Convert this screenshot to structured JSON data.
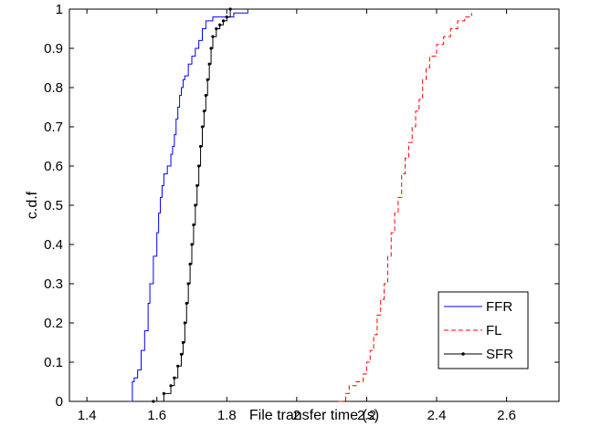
{
  "chart_data": {
    "type": "line",
    "title": "",
    "xlabel": "File transfer time (s)",
    "ylabel": "c.d.f",
    "xlim": [
      1.35,
      2.75
    ],
    "ylim": [
      0,
      1
    ],
    "xticks": [
      "1.4",
      "1.6",
      "1.8",
      "2",
      "2.2",
      "2.4",
      "2.6"
    ],
    "xtick_values": [
      1.4,
      1.6,
      1.8,
      2.0,
      2.2,
      2.4,
      2.6
    ],
    "yticks": [
      "0",
      "0.1",
      "0.2",
      "0.3",
      "0.4",
      "0.5",
      "0.6",
      "0.7",
      "0.8",
      "0.9",
      "1"
    ],
    "ytick_values": [
      0,
      0.1,
      0.2,
      0.3,
      0.4,
      0.5,
      0.6,
      0.7,
      0.8,
      0.9,
      1.0
    ],
    "grid": false,
    "legend_position": "bottom-right",
    "series": [
      {
        "name": "FFR",
        "color": "#0000ff",
        "style": "solid",
        "marker": "none",
        "x": [
          1.52,
          1.53,
          1.535,
          1.545,
          1.555,
          1.565,
          1.575,
          1.58,
          1.59,
          1.6,
          1.605,
          1.61,
          1.615,
          1.62,
          1.63,
          1.64,
          1.645,
          1.65,
          1.655,
          1.66,
          1.665,
          1.67,
          1.675,
          1.68,
          1.69,
          1.7,
          1.71,
          1.72,
          1.73,
          1.74,
          1.76,
          1.78,
          1.82,
          1.86
        ],
        "y": [
          0.0,
          0.05,
          0.06,
          0.08,
          0.13,
          0.18,
          0.25,
          0.3,
          0.37,
          0.43,
          0.48,
          0.52,
          0.55,
          0.58,
          0.6,
          0.63,
          0.65,
          0.68,
          0.72,
          0.75,
          0.78,
          0.8,
          0.82,
          0.83,
          0.86,
          0.88,
          0.9,
          0.92,
          0.95,
          0.97,
          0.98,
          0.98,
          0.99,
          1.0
        ]
      },
      {
        "name": "FL",
        "color": "#ff0000",
        "style": "dashed",
        "marker": "none",
        "x": [
          2.12,
          2.14,
          2.15,
          2.17,
          2.19,
          2.2,
          2.21,
          2.22,
          2.23,
          2.24,
          2.25,
          2.26,
          2.27,
          2.28,
          2.29,
          2.3,
          2.31,
          2.32,
          2.33,
          2.34,
          2.35,
          2.36,
          2.37,
          2.38,
          2.4,
          2.42,
          2.44,
          2.46,
          2.48,
          2.5
        ],
        "y": [
          0.0,
          0.02,
          0.04,
          0.05,
          0.07,
          0.1,
          0.13,
          0.17,
          0.22,
          0.26,
          0.3,
          0.37,
          0.43,
          0.48,
          0.52,
          0.58,
          0.62,
          0.66,
          0.7,
          0.74,
          0.77,
          0.82,
          0.85,
          0.88,
          0.91,
          0.93,
          0.95,
          0.97,
          0.98,
          0.99
        ]
      },
      {
        "name": "SFR",
        "color": "#000000",
        "style": "solid",
        "marker": "dot",
        "x": [
          1.59,
          1.62,
          1.64,
          1.65,
          1.66,
          1.67,
          1.675,
          1.68,
          1.685,
          1.69,
          1.695,
          1.7,
          1.705,
          1.71,
          1.715,
          1.72,
          1.725,
          1.73,
          1.735,
          1.74,
          1.745,
          1.75,
          1.755,
          1.76,
          1.77,
          1.78,
          1.79,
          1.8,
          1.81
        ],
        "y": [
          0.0,
          0.02,
          0.04,
          0.06,
          0.09,
          0.12,
          0.15,
          0.2,
          0.25,
          0.3,
          0.35,
          0.4,
          0.45,
          0.5,
          0.55,
          0.6,
          0.65,
          0.7,
          0.74,
          0.78,
          0.82,
          0.86,
          0.9,
          0.93,
          0.95,
          0.96,
          0.97,
          0.98,
          1.0
        ]
      }
    ]
  }
}
